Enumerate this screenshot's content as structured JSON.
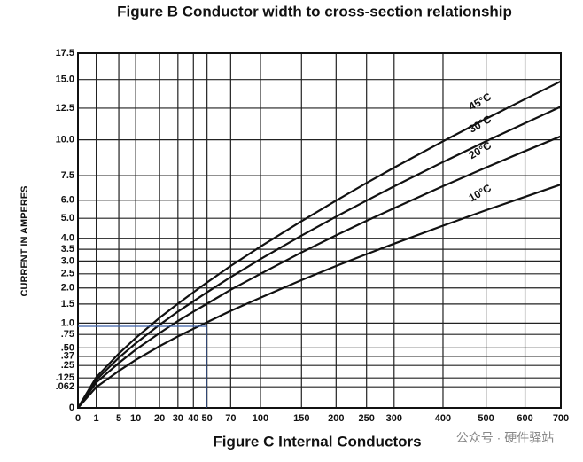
{
  "chart_data": {
    "type": "line",
    "title": "Figure B   Conductor width to cross-section relationship",
    "subtitle": "Figure C   Internal Conductors",
    "ylabel": "CURRENT IN AMPERES",
    "watermark": "公众号 · 硬件驿站",
    "xscale": "sqrt",
    "yscale": "sqrt",
    "grid": true,
    "x": [
      0,
      1,
      5,
      10,
      20,
      30,
      40,
      50,
      70,
      100,
      150,
      200,
      250,
      300,
      400,
      500,
      600,
      700
    ],
    "series": [
      {
        "name": "10°C",
        "color": "#111111",
        "values": [
          0,
          0.06,
          0.19,
          0.32,
          0.53,
          0.71,
          0.87,
          1.02,
          1.31,
          1.69,
          2.27,
          2.8,
          3.29,
          3.75,
          4.62,
          5.44,
          6.2,
          6.94
        ]
      },
      {
        "name": "20°C",
        "color": "#111111",
        "values": [
          0,
          0.09,
          0.28,
          0.47,
          0.78,
          1.05,
          1.29,
          1.51,
          1.94,
          2.5,
          3.36,
          4.14,
          4.87,
          5.55,
          6.84,
          8.04,
          9.18,
          10.26
        ]
      },
      {
        "name": "30°C",
        "color": "#111111",
        "values": [
          0,
          0.11,
          0.35,
          0.58,
          0.96,
          1.29,
          1.58,
          1.86,
          2.38,
          3.08,
          4.13,
          5.09,
          5.98,
          6.83,
          8.41,
          9.89,
          11.28,
          12.62
        ]
      },
      {
        "name": "45°C",
        "color": "#111111",
        "values": [
          0,
          0.13,
          0.41,
          0.68,
          1.13,
          1.51,
          1.86,
          2.19,
          2.8,
          3.62,
          4.85,
          5.98,
          7.04,
          8.03,
          9.89,
          11.63,
          13.27,
          14.84
        ]
      }
    ],
    "xlim": [
      0,
      700
    ],
    "xticks": [
      0,
      1,
      5,
      10,
      20,
      30,
      40,
      50,
      70,
      100,
      150,
      200,
      250,
      300,
      400,
      500,
      600,
      700
    ],
    "ylim": [
      0,
      17.5
    ],
    "yticks": [
      0,
      {
        "value": 0.062,
        "label": ".062"
      },
      {
        "value": 0.125,
        "label": ".125"
      },
      {
        "value": 0.25,
        "label": ".25"
      },
      {
        "value": 0.37,
        "label": ".37"
      },
      {
        "value": 0.5,
        "label": ".50"
      },
      {
        "value": 0.75,
        "label": ".75"
      },
      {
        "value": 1,
        "label": "1.0"
      },
      1.5,
      {
        "value": 2,
        "label": "2.0"
      },
      2.5,
      {
        "value": 3,
        "label": "3.0"
      },
      3.5,
      {
        "value": 4,
        "label": "4.0"
      },
      {
        "value": 5,
        "label": "5.0"
      },
      {
        "value": 6,
        "label": "6.0"
      },
      7.5,
      {
        "value": 10,
        "label": "10.0"
      },
      12.5,
      {
        "value": 15,
        "label": "15.0"
      },
      17.5
    ]
  }
}
